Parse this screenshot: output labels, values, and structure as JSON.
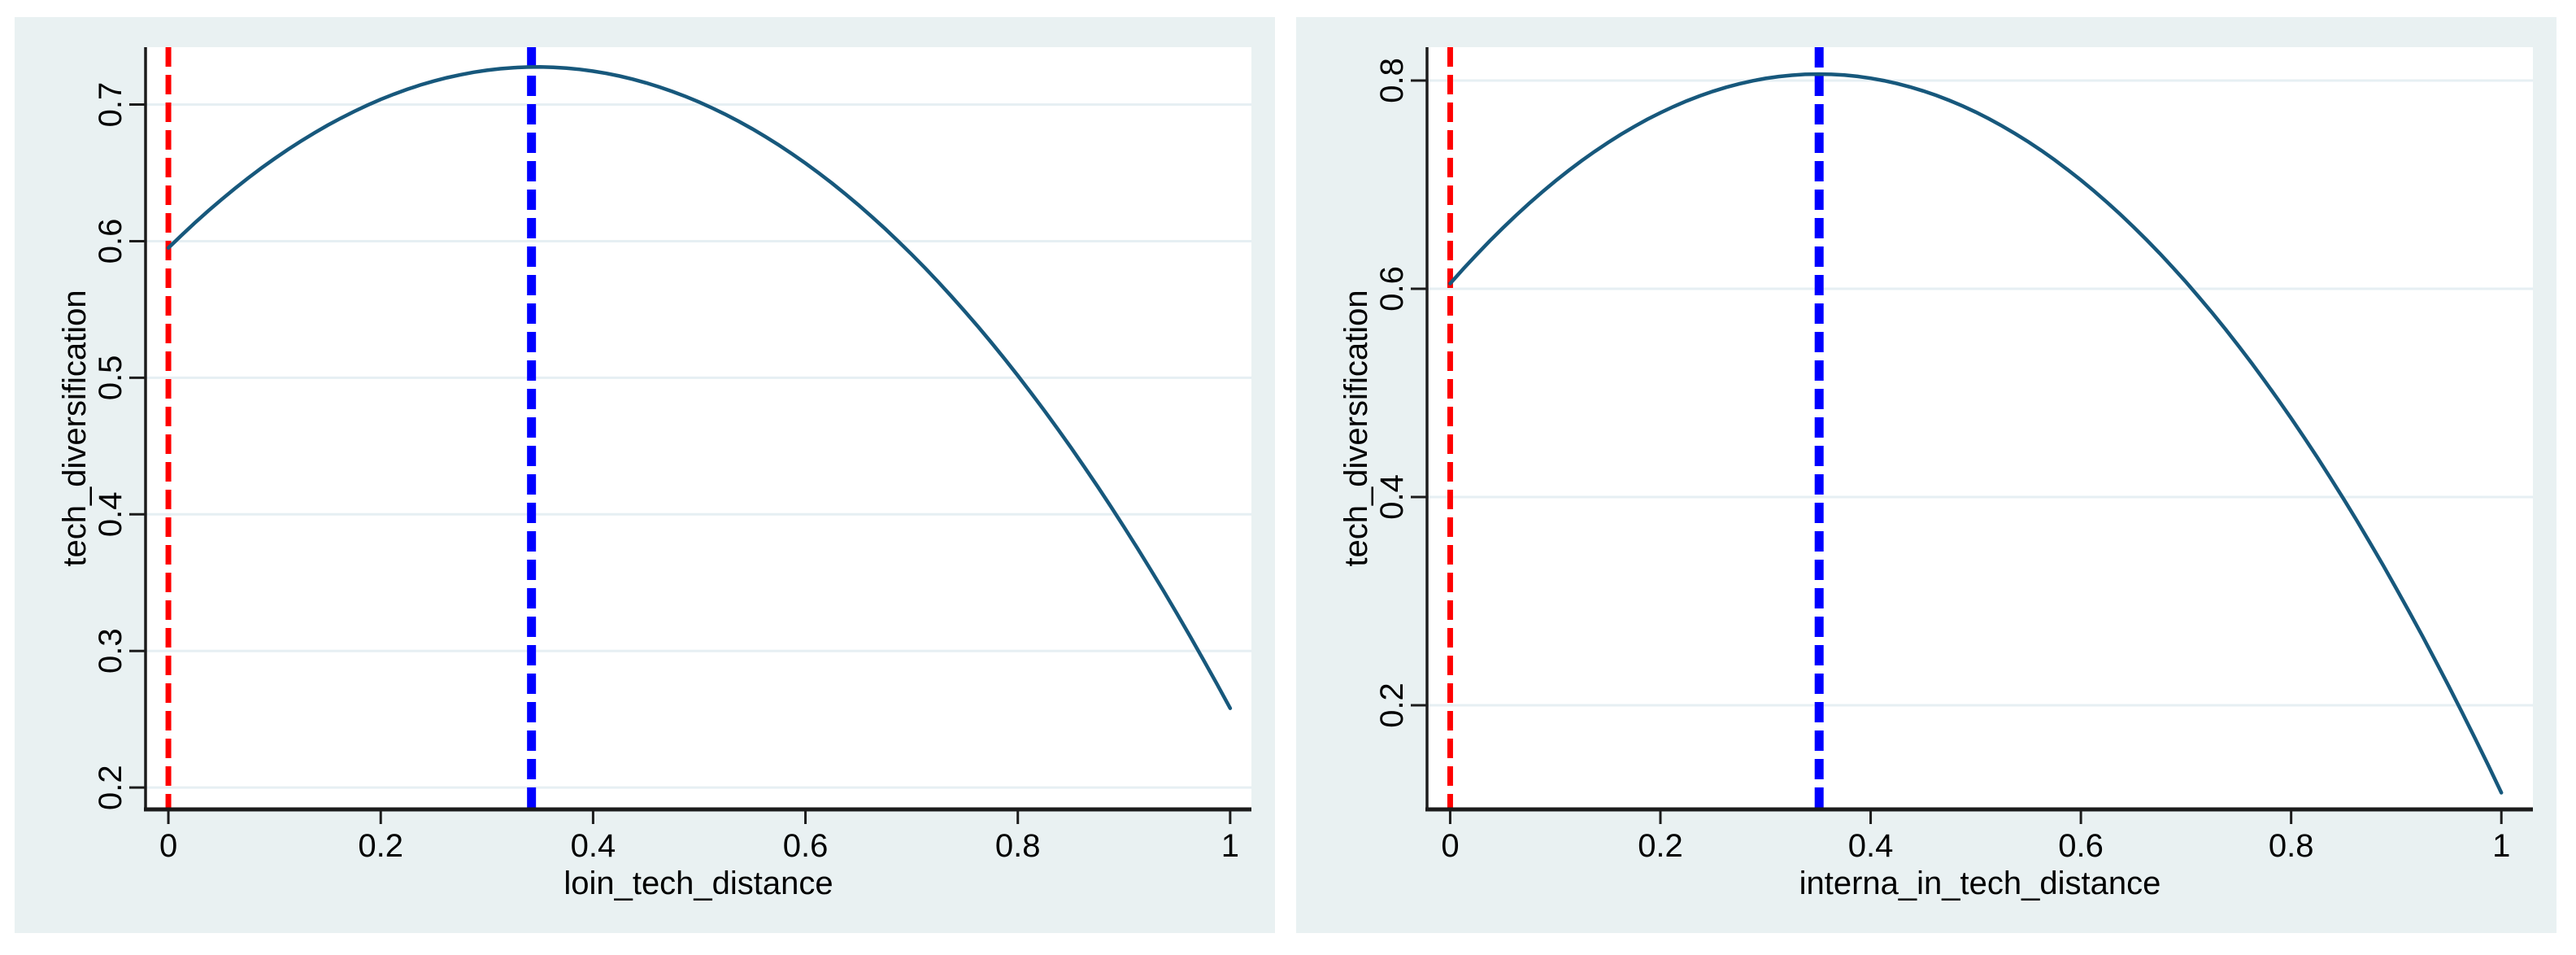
{
  "style": {
    "canvas_bg": "#ffffff",
    "panel_bg": "#e9f1f2",
    "plot_bg": "#ffffff",
    "grid_color": "#e6eff3",
    "axis_color": "#1c1c1c",
    "tick_color": "#1c1c1c",
    "text_color": "#000000",
    "curve_color": "#17587c",
    "red_line_color": "#ff0000",
    "blue_line_color": "#0000ff"
  },
  "chart_data": [
    {
      "type": "line",
      "title": "",
      "xlabel": "loin_tech_distance",
      "ylabel": "tech_diversification",
      "xlim": [
        -0.0215,
        1.02
      ],
      "ylim": [
        0.184,
        0.742
      ],
      "xtick_labels": [
        "0",
        "0.2",
        "0.4",
        "0.6",
        "0.8",
        "1"
      ],
      "xtick_values": [
        0,
        0.2,
        0.4,
        0.6,
        0.8,
        1
      ],
      "ytick_labels": [
        "0.2",
        "0.3",
        "0.4",
        "0.5",
        "0.6",
        "0.7"
      ],
      "ytick_values": [
        0.2,
        0.3,
        0.4,
        0.5,
        0.6,
        0.7
      ],
      "grid": "horizontal",
      "legend": "none",
      "series": [
        {
          "name": "quadratic-fit",
          "shape": "quadratic",
          "coefficients": {
            "c0": 0.595,
            "c1": 0.764,
            "c2": -1.101
          },
          "x_range": [
            0,
            1
          ],
          "key_points": {
            "start": [
              0,
              0.595
            ],
            "peak": [
              0.347,
              0.727
            ],
            "end": [
              1,
              0.258
            ]
          }
        }
      ],
      "reference_lines": [
        {
          "name": "red-zero-line",
          "x": 0,
          "color": "#ff0000",
          "stroke_width": 7,
          "dash": "24 10"
        },
        {
          "name": "blue-peak-line",
          "x": 0.342,
          "color": "#0000ff",
          "stroke_width": 11,
          "dash": "25 10"
        }
      ]
    },
    {
      "type": "line",
      "title": "",
      "xlabel": "interna_in_tech_distance",
      "ylabel": "tech_diversification",
      "xlim": [
        -0.022,
        1.03
      ],
      "ylim": [
        0.1,
        0.832
      ],
      "xtick_labels": [
        "0",
        "0.2",
        "0.4",
        "0.6",
        "0.8",
        "1"
      ],
      "xtick_values": [
        0,
        0.2,
        0.4,
        0.6,
        0.8,
        1
      ],
      "ytick_labels": [
        "0.2",
        "0.4",
        "0.6",
        "0.8"
      ],
      "ytick_values": [
        0.2,
        0.4,
        0.6,
        0.8
      ],
      "grid": "horizontal",
      "legend": "none",
      "series": [
        {
          "name": "quadratic-fit",
          "shape": "quadratic",
          "coefficients": {
            "c0": 0.605,
            "c1": 1.1475,
            "c2": -1.6365
          },
          "x_range": [
            0,
            1
          ],
          "key_points": {
            "start": [
              0,
              0.605
            ],
            "peak": [
              0.351,
              0.806
            ],
            "end": [
              1,
              0.116
            ]
          }
        }
      ],
      "reference_lines": [
        {
          "name": "red-zero-line",
          "x": 0,
          "color": "#ff0000",
          "stroke_width": 7,
          "dash": "24 10"
        },
        {
          "name": "blue-peak-line",
          "x": 0.351,
          "color": "#0000ff",
          "stroke_width": 11,
          "dash": "25 10"
        }
      ]
    }
  ]
}
